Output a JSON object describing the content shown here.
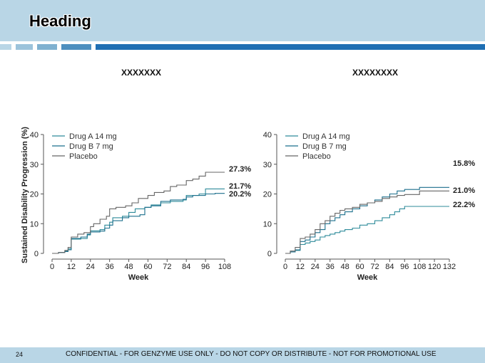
{
  "header": {
    "title": "Heading"
  },
  "footer": {
    "page_number": "24",
    "confidential": "CONFIDENTIAL - FOR GENZYME USE ONLY - DO NOT COPY OR DISTRIBUTE - NOT FOR PROMOTIONAL USE"
  },
  "colors": {
    "header_bg": "#b9d6e6",
    "drug_a": "#2e8b9a",
    "drug_b": "#1b6f8c",
    "placebo": "#666666"
  },
  "y_axis_title": "Sustained Disability Progression (%)",
  "chart_data": [
    {
      "type": "line",
      "title": "XXXXXXX",
      "xlabel": "Week",
      "ylabel": "Sustained Disability Progression (%)",
      "xlim": [
        0,
        108
      ],
      "ylim": [
        0,
        40
      ],
      "x_ticks": [
        0,
        12,
        24,
        36,
        48,
        60,
        72,
        84,
        96,
        108
      ],
      "y_ticks": [
        0,
        10,
        20,
        30,
        40
      ],
      "legend": "top-left",
      "grid": false,
      "series": [
        {
          "name": "Drug A 14 mg",
          "end_label": "21.7%",
          "points": [
            [
              0,
              0
            ],
            [
              4,
              0.3
            ],
            [
              8,
              0.8
            ],
            [
              10,
              1.5
            ],
            [
              12,
              4.8
            ],
            [
              18,
              5.0
            ],
            [
              22,
              6.2
            ],
            [
              24,
              7.6
            ],
            [
              30,
              8.0
            ],
            [
              33,
              9.5
            ],
            [
              36,
              10.5
            ],
            [
              38,
              12.0
            ],
            [
              44,
              12.5
            ],
            [
              48,
              13.8
            ],
            [
              52,
              15.0
            ],
            [
              58,
              15.5
            ],
            [
              62,
              16.3
            ],
            [
              68,
              17.0
            ],
            [
              74,
              17.5
            ],
            [
              82,
              18.0
            ],
            [
              84,
              19.5
            ],
            [
              92,
              20.0
            ],
            [
              96,
              21.7
            ],
            [
              108,
              21.7
            ]
          ]
        },
        {
          "name": "Drug B 7 mg",
          "end_label": "20.2%",
          "points": [
            [
              0,
              0
            ],
            [
              4,
              0.3
            ],
            [
              8,
              0.6
            ],
            [
              10,
              1.2
            ],
            [
              12,
              5.0
            ],
            [
              18,
              5.5
            ],
            [
              22,
              6.5
            ],
            [
              24,
              7.2
            ],
            [
              30,
              7.5
            ],
            [
              33,
              8.5
            ],
            [
              36,
              9.5
            ],
            [
              38,
              11.0
            ],
            [
              44,
              12.0
            ],
            [
              48,
              12.5
            ],
            [
              55,
              13.0
            ],
            [
              58,
              15.5
            ],
            [
              62,
              16.0
            ],
            [
              68,
              17.5
            ],
            [
              74,
              18.0
            ],
            [
              82,
              18.2
            ],
            [
              84,
              19.0
            ],
            [
              88,
              19.5
            ],
            [
              96,
              20.0
            ],
            [
              102,
              20.2
            ],
            [
              108,
              20.2
            ]
          ]
        },
        {
          "name": "Placebo",
          "end_label": "27.3%",
          "points": [
            [
              0,
              0
            ],
            [
              4,
              0.3
            ],
            [
              8,
              1.0
            ],
            [
              10,
              2.0
            ],
            [
              12,
              5.5
            ],
            [
              16,
              6.5
            ],
            [
              20,
              7.0
            ],
            [
              24,
              9.0
            ],
            [
              26,
              10.0
            ],
            [
              30,
              11.5
            ],
            [
              34,
              12.5
            ],
            [
              36,
              15.0
            ],
            [
              40,
              15.5
            ],
            [
              46,
              16.0
            ],
            [
              50,
              17.0
            ],
            [
              54,
              18.5
            ],
            [
              60,
              19.5
            ],
            [
              64,
              20.5
            ],
            [
              70,
              21.0
            ],
            [
              74,
              22.5
            ],
            [
              78,
              23.0
            ],
            [
              84,
              24.5
            ],
            [
              88,
              25.0
            ],
            [
              92,
              26.0
            ],
            [
              96,
              27.3
            ],
            [
              108,
              27.3
            ]
          ]
        }
      ]
    },
    {
      "type": "line",
      "title": "XXXXXXXX",
      "xlabel": "Week",
      "ylabel": "",
      "xlim": [
        0,
        132
      ],
      "ylim": [
        0,
        40
      ],
      "x_ticks": [
        0,
        12,
        24,
        36,
        48,
        60,
        72,
        84,
        96,
        108,
        120,
        132
      ],
      "y_ticks": [
        0,
        10,
        20,
        30,
        40
      ],
      "legend": "top-left",
      "grid": false,
      "series": [
        {
          "name": "Drug A 14 mg",
          "end_label": "15.8%",
          "points": [
            [
              0,
              0
            ],
            [
              4,
              0.5
            ],
            [
              8,
              1.0
            ],
            [
              12,
              3.0
            ],
            [
              16,
              3.5
            ],
            [
              20,
              4.0
            ],
            [
              24,
              4.5
            ],
            [
              28,
              5.5
            ],
            [
              32,
              6.0
            ],
            [
              36,
              6.5
            ],
            [
              40,
              7.0
            ],
            [
              44,
              7.5
            ],
            [
              48,
              8.0
            ],
            [
              54,
              8.5
            ],
            [
              60,
              9.5
            ],
            [
              66,
              10.0
            ],
            [
              72,
              11.0
            ],
            [
              78,
              12.0
            ],
            [
              84,
              13.0
            ],
            [
              88,
              14.0
            ],
            [
              92,
              15.0
            ],
            [
              96,
              15.8
            ],
            [
              132,
              15.8
            ]
          ]
        },
        {
          "name": "Drug B 7 mg",
          "end_label": "22.2%",
          "points": [
            [
              0,
              0
            ],
            [
              4,
              0.5
            ],
            [
              8,
              1.2
            ],
            [
              12,
              4.0
            ],
            [
              16,
              4.5
            ],
            [
              20,
              5.5
            ],
            [
              24,
              7.0
            ],
            [
              28,
              8.0
            ],
            [
              32,
              10.0
            ],
            [
              36,
              11.0
            ],
            [
              40,
              12.0
            ],
            [
              44,
              13.0
            ],
            [
              48,
              14.0
            ],
            [
              54,
              15.0
            ],
            [
              60,
              16.0
            ],
            [
              66,
              17.0
            ],
            [
              72,
              18.0
            ],
            [
              78,
              19.0
            ],
            [
              84,
              20.0
            ],
            [
              90,
              21.0
            ],
            [
              96,
              21.5
            ],
            [
              108,
              22.2
            ],
            [
              132,
              22.2
            ]
          ]
        },
        {
          "name": "Placebo",
          "end_label": "21.0%",
          "points": [
            [
              0,
              0
            ],
            [
              4,
              0.8
            ],
            [
              8,
              2.0
            ],
            [
              12,
              5.0
            ],
            [
              16,
              5.5
            ],
            [
              20,
              6.5
            ],
            [
              24,
              8.0
            ],
            [
              28,
              10.0
            ],
            [
              32,
              11.0
            ],
            [
              36,
              12.5
            ],
            [
              40,
              13.5
            ],
            [
              44,
              14.5
            ],
            [
              48,
              15.0
            ],
            [
              54,
              15.5
            ],
            [
              60,
              16.5
            ],
            [
              66,
              17.0
            ],
            [
              72,
              17.5
            ],
            [
              78,
              18.5
            ],
            [
              84,
              19.0
            ],
            [
              90,
              19.5
            ],
            [
              96,
              19.8
            ],
            [
              108,
              21.0
            ],
            [
              132,
              21.0
            ]
          ]
        }
      ]
    }
  ]
}
